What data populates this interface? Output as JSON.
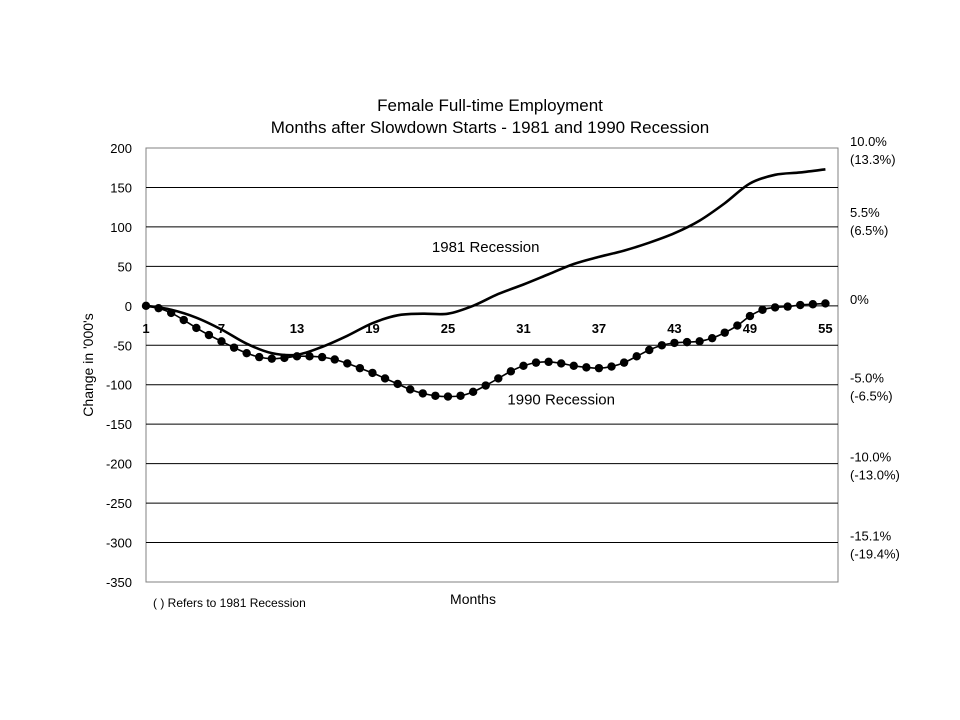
{
  "chart_data": {
    "type": "line",
    "title": [
      "Female Full-time Employment",
      "Months after Slowdown Starts - 1981 and 1990 Recession"
    ],
    "xlabel": "Months",
    "ylabel": "Change in '000's",
    "xlim": [
      1,
      56
    ],
    "ylim": [
      -350,
      200
    ],
    "x_ticks": [
      1,
      7,
      13,
      19,
      25,
      31,
      37,
      43,
      49,
      55
    ],
    "y_ticks": [
      200,
      150,
      100,
      50,
      0,
      -50,
      -100,
      -150,
      -200,
      -250,
      -300,
      -350
    ],
    "grid": true,
    "right_axis_labels": [
      {
        "y": 200,
        "line1": "10.0%",
        "line2": "(13.3%)"
      },
      {
        "y": 110,
        "line1": "5.5%",
        "line2": "(6.5%)"
      },
      {
        "y": 0,
        "line1": "0%",
        "line2": ""
      },
      {
        "y": -100,
        "line1": "-5.0%",
        "line2": "(-6.5%)"
      },
      {
        "y": -200,
        "line1": "-10.0%",
        "line2": "(-13.0%)"
      },
      {
        "y": -300,
        "line1": "-15.1%",
        "line2": "(-19.4%)"
      }
    ],
    "annotations": [
      {
        "text": "1981 Recession",
        "x": 28,
        "y": 68
      },
      {
        "text": "1990 Recession",
        "x": 34,
        "y": -125
      }
    ],
    "footnote": "( ) Refers to 1981 Recession",
    "series": [
      {
        "name": "1981 Recession",
        "style": "solid",
        "color": "#000000",
        "x": [
          1,
          3,
          5,
          7,
          9,
          11,
          13,
          15,
          17,
          19,
          21,
          23,
          25,
          27,
          29,
          31,
          33,
          35,
          37,
          39,
          41,
          43,
          45,
          47,
          49,
          51,
          53,
          55
        ],
        "y": [
          0,
          -5,
          -15,
          -30,
          -48,
          -60,
          -62,
          -52,
          -38,
          -22,
          -12,
          -10,
          -10,
          0,
          15,
          27,
          40,
          53,
          62,
          70,
          80,
          92,
          108,
          130,
          155,
          166,
          169,
          173
        ]
      },
      {
        "name": "1990 Recession",
        "style": "dotted",
        "color": "#000000",
        "x": [
          1,
          2,
          3,
          4,
          5,
          6,
          7,
          8,
          9,
          10,
          11,
          12,
          13,
          14,
          15,
          16,
          17,
          18,
          19,
          20,
          21,
          22,
          23,
          24,
          25,
          26,
          27,
          28,
          29,
          30,
          31,
          32,
          33,
          34,
          35,
          36,
          37,
          38,
          39,
          40,
          41,
          42,
          43,
          44,
          45,
          46,
          47,
          48,
          49,
          50,
          51,
          52,
          53,
          54,
          55
        ],
        "y": [
          0,
          -3,
          -9,
          -18,
          -28,
          -37,
          -45,
          -53,
          -60,
          -65,
          -67,
          -66,
          -64,
          -64,
          -65,
          -68,
          -73,
          -79,
          -85,
          -92,
          -99,
          -106,
          -111,
          -114,
          -115,
          -114,
          -109,
          -101,
          -92,
          -83,
          -76,
          -72,
          -71,
          -73,
          -76,
          -78,
          -79,
          -77,
          -72,
          -64,
          -56,
          -50,
          -47,
          -46,
          -45,
          -41,
          -34,
          -25,
          -13,
          -5,
          -2,
          -1,
          1,
          2,
          3
        ]
      }
    ]
  }
}
